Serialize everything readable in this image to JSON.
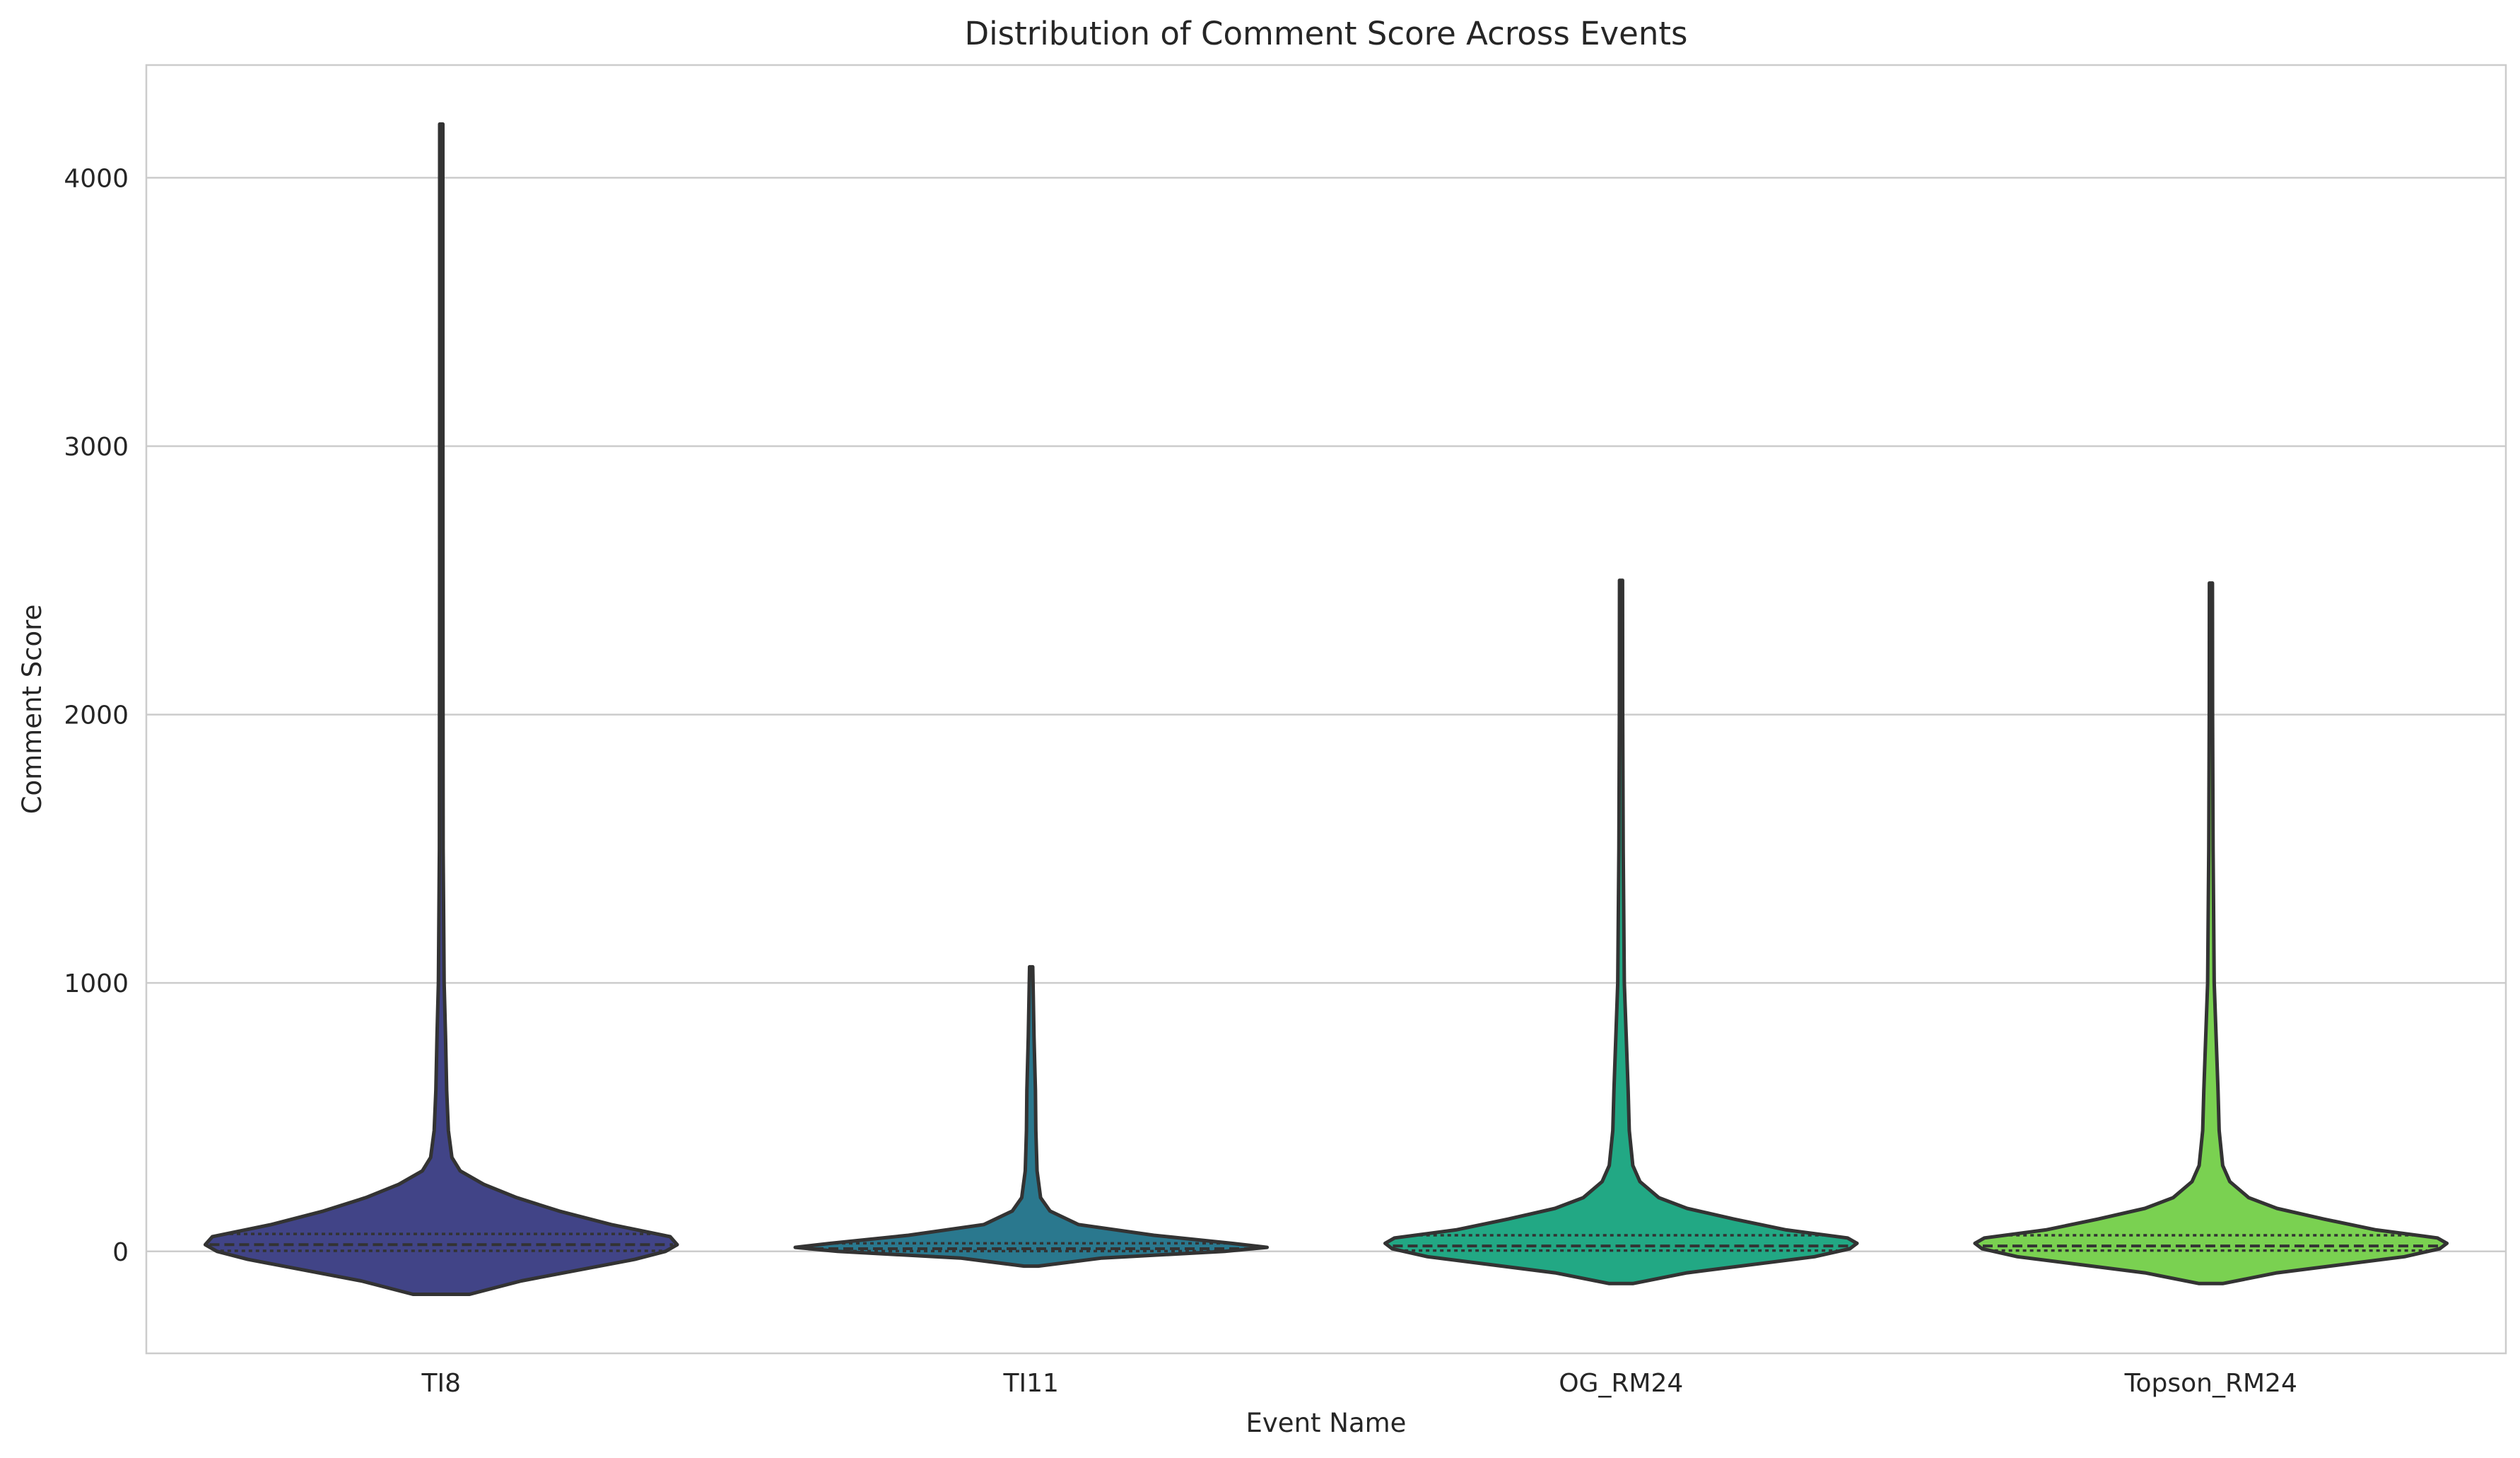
{
  "chart_data": {
    "type": "violin",
    "title": "Distribution of Comment Score Across Events",
    "xlabel": "Event Name",
    "ylabel": "Comment Score",
    "ylim": [
      -380,
      4420
    ],
    "yticks": [
      0,
      1000,
      2000,
      3000,
      4000
    ],
    "grid": "y-axis only",
    "legend": "none",
    "inner": "quartile lines",
    "categories": [
      "TI8",
      "TI11",
      "OG_RM24",
      "Topson_RM24"
    ],
    "series": [
      {
        "category": "TI8",
        "color": "#414487",
        "min": -160,
        "max": 4200,
        "quartiles": [
          2,
          25,
          65
        ],
        "profile": [
          [
            -160,
            0.12
          ],
          [
            -110,
            0.34
          ],
          [
            -30,
            0.82
          ],
          [
            0,
            0.95
          ],
          [
            25,
            1.0
          ],
          [
            55,
            0.97
          ],
          [
            100,
            0.72
          ],
          [
            150,
            0.5
          ],
          [
            200,
            0.32
          ],
          [
            250,
            0.18
          ],
          [
            300,
            0.08
          ],
          [
            350,
            0.045
          ],
          [
            450,
            0.03
          ],
          [
            600,
            0.023
          ],
          [
            800,
            0.018
          ],
          [
            1000,
            0.012
          ],
          [
            1500,
            0.008
          ],
          [
            2500,
            0.007
          ],
          [
            3500,
            0.006
          ],
          [
            4200,
            0.004
          ]
        ]
      },
      {
        "category": "TI11",
        "color": "#2A788E",
        "min": -55,
        "max": 1060,
        "quartiles": [
          1,
          10,
          30
        ],
        "profile": [
          [
            -55,
            0.03
          ],
          [
            -25,
            0.3
          ],
          [
            0,
            0.82
          ],
          [
            15,
            1.0
          ],
          [
            30,
            0.85
          ],
          [
            60,
            0.52
          ],
          [
            100,
            0.2
          ],
          [
            150,
            0.08
          ],
          [
            200,
            0.04
          ],
          [
            300,
            0.025
          ],
          [
            450,
            0.02
          ],
          [
            600,
            0.018
          ],
          [
            800,
            0.012
          ],
          [
            1060,
            0.006
          ]
        ]
      },
      {
        "category": "OG_RM24",
        "color": "#22A884",
        "min": -120,
        "max": 2500,
        "quartiles": [
          3,
          20,
          60
        ],
        "profile": [
          [
            -120,
            0.05
          ],
          [
            -80,
            0.28
          ],
          [
            -20,
            0.82
          ],
          [
            10,
            0.97
          ],
          [
            30,
            1.0
          ],
          [
            50,
            0.96
          ],
          [
            80,
            0.7
          ],
          [
            120,
            0.48
          ],
          [
            160,
            0.28
          ],
          [
            200,
            0.16
          ],
          [
            260,
            0.08
          ],
          [
            320,
            0.05
          ],
          [
            450,
            0.035
          ],
          [
            600,
            0.03
          ],
          [
            800,
            0.022
          ],
          [
            1000,
            0.014
          ],
          [
            1500,
            0.009
          ],
          [
            2000,
            0.007
          ],
          [
            2500,
            0.005
          ]
        ]
      },
      {
        "category": "Topson_RM24",
        "color": "#7AD151",
        "min": -120,
        "max": 2490,
        "quartiles": [
          3,
          20,
          60
        ],
        "profile": [
          [
            -120,
            0.05
          ],
          [
            -80,
            0.28
          ],
          [
            -20,
            0.82
          ],
          [
            10,
            0.97
          ],
          [
            30,
            1.0
          ],
          [
            50,
            0.96
          ],
          [
            80,
            0.7
          ],
          [
            120,
            0.48
          ],
          [
            160,
            0.28
          ],
          [
            200,
            0.16
          ],
          [
            260,
            0.08
          ],
          [
            320,
            0.05
          ],
          [
            450,
            0.035
          ],
          [
            600,
            0.03
          ],
          [
            800,
            0.022
          ],
          [
            1000,
            0.014
          ],
          [
            1500,
            0.009
          ],
          [
            2000,
            0.007
          ],
          [
            2490,
            0.005
          ]
        ]
      }
    ]
  }
}
